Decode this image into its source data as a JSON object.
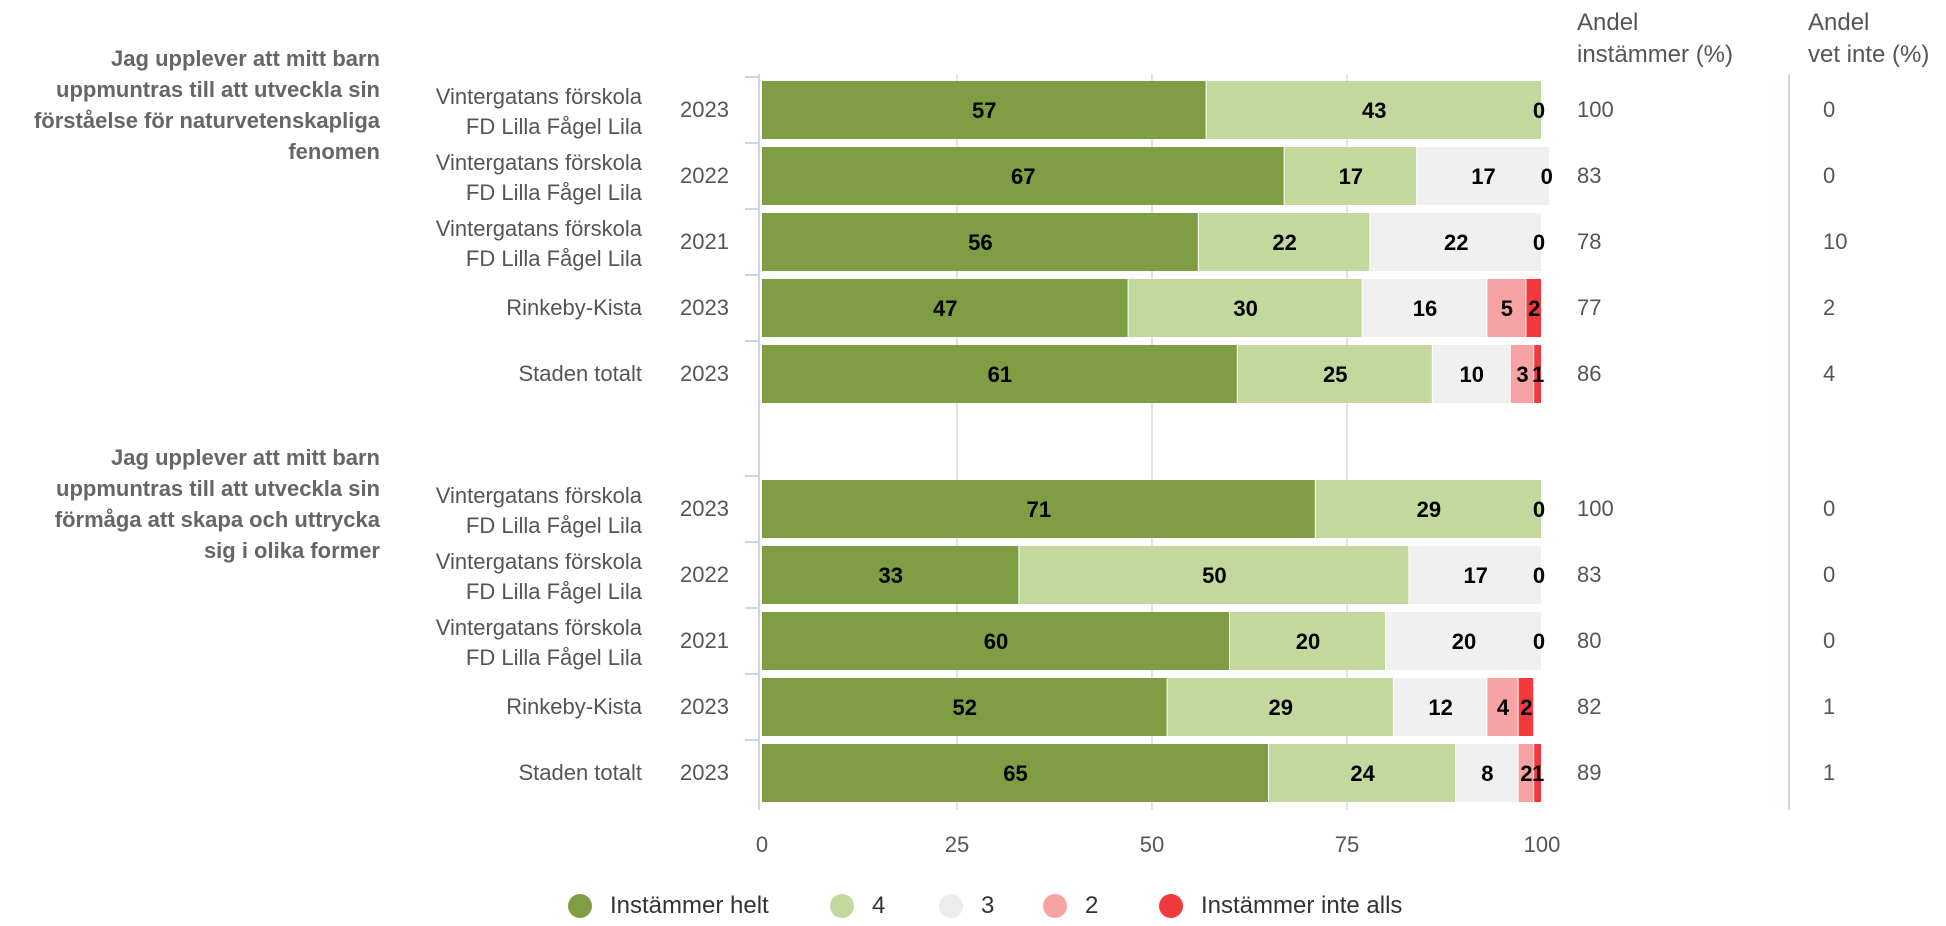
{
  "chart_data": {
    "type": "bar",
    "orientation": "horizontal",
    "stacked": true,
    "xlim": [
      0,
      100
    ],
    "xticks": [
      0,
      25,
      50,
      75,
      100
    ],
    "grid": true,
    "legend_position": "bottom",
    "series": [
      {
        "name": "Instämmer helt",
        "color": "#7f9d42"
      },
      {
        "name": "4",
        "color": "#c3d89d"
      },
      {
        "name": "3",
        "color": "#f0f0f0"
      },
      {
        "name": "2",
        "color": "#f7a3a3"
      },
      {
        "name": "Instämmer inte alls",
        "color": "#f2393d"
      }
    ],
    "column_headers": {
      "agree": "Andel instämmer (%)",
      "dontknow": "Andel vet inte (%)"
    },
    "groups": [
      {
        "question": "Jag upplever att mitt barn uppmuntras till att utveckla sin förståelse för naturvetenskapliga fenomen",
        "rows": [
          {
            "label": "Vintergatans förskola FD Lilla Fågel Lila",
            "year": "2023",
            "values": [
              57,
              43,
              0,
              0,
              0
            ],
            "labels": [
              "57",
              "43",
              "0",
              "",
              ""
            ],
            "agree": "100",
            "dontknow": "0"
          },
          {
            "label": "Vintergatans förskola FD Lilla Fågel Lila",
            "year": "2022",
            "values": [
              67,
              17,
              17,
              0,
              0
            ],
            "labels": [
              "67",
              "17",
              "17",
              "0",
              ""
            ],
            "agree": "83",
            "dontknow": "0"
          },
          {
            "label": "Vintergatans förskola FD Lilla Fågel Lila",
            "year": "2021",
            "values": [
              56,
              22,
              22,
              0,
              0
            ],
            "labels": [
              "56",
              "22",
              "22",
              "0",
              ""
            ],
            "agree": "78",
            "dontknow": "10"
          },
          {
            "label": "Rinkeby-Kista",
            "year": "2023",
            "values": [
              47,
              30,
              16,
              5,
              2
            ],
            "labels": [
              "47",
              "30",
              "16",
              "5",
              "2"
            ],
            "agree": "77",
            "dontknow": "2"
          },
          {
            "label": "Staden totalt",
            "year": "2023",
            "values": [
              61,
              25,
              10,
              3,
              1
            ],
            "labels": [
              "61",
              "25",
              "10",
              "3",
              "1"
            ],
            "agree": "86",
            "dontknow": "4"
          }
        ]
      },
      {
        "question": "Jag upplever att mitt barn uppmuntras till att utveckla sin förmåga att skapa och uttrycka sig i olika former",
        "rows": [
          {
            "label": "Vintergatans förskola FD Lilla Fågel Lila",
            "year": "2023",
            "values": [
              71,
              29,
              0,
              0,
              0
            ],
            "labels": [
              "71",
              "29",
              "0",
              "",
              ""
            ],
            "agree": "100",
            "dontknow": "0"
          },
          {
            "label": "Vintergatans förskola FD Lilla Fågel Lila",
            "year": "2022",
            "values": [
              33,
              50,
              17,
              0,
              0
            ],
            "labels": [
              "33",
              "50",
              "17",
              "0",
              ""
            ],
            "agree": "83",
            "dontknow": "0"
          },
          {
            "label": "Vintergatans förskola FD Lilla Fågel Lila",
            "year": "2021",
            "values": [
              60,
              20,
              20,
              0,
              0
            ],
            "labels": [
              "60",
              "20",
              "20",
              "0",
              ""
            ],
            "agree": "80",
            "dontknow": "0"
          },
          {
            "label": "Rinkeby-Kista",
            "year": "2023",
            "values": [
              52,
              29,
              12,
              4,
              2
            ],
            "labels": [
              "52",
              "29",
              "12",
              "4",
              "2"
            ],
            "agree": "82",
            "dontknow": "1"
          },
          {
            "label": "Staden totalt",
            "year": "2023",
            "values": [
              65,
              24,
              8,
              2,
              1
            ],
            "labels": [
              "65",
              "24",
              "8",
              "2",
              "1"
            ],
            "agree": "89",
            "dontknow": "1"
          }
        ]
      }
    ]
  }
}
